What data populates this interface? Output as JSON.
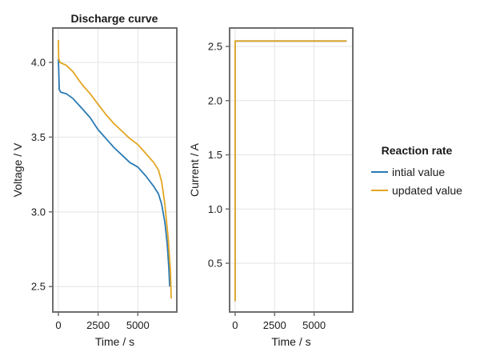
{
  "chart_data": [
    {
      "type": "line",
      "title": "Discharge curve",
      "xlabel": "Time / s",
      "ylabel": "Voltage / V",
      "xlim": [
        -350,
        7450
      ],
      "ylim": [
        2.33,
        4.23
      ],
      "xticks": [
        0,
        2500,
        5000
      ],
      "xtick_labels": [
        "0",
        "2500",
        "5000"
      ],
      "yticks": [
        2.5,
        3.0,
        3.5,
        4.0
      ],
      "ytick_labels": [
        "2.5",
        "3.0",
        "3.5",
        "4.0"
      ],
      "grid": true,
      "series": [
        {
          "name": "intial value",
          "color": "#2a7ab3",
          "x": [
            0,
            20,
            60,
            150,
            500,
            900,
            1500,
            2000,
            2500,
            3000,
            3500,
            4000,
            4500,
            5000,
            5500,
            6000,
            6300,
            6500,
            6700,
            6850,
            6950,
            7000
          ],
          "y": [
            4.02,
            3.95,
            3.82,
            3.8,
            3.79,
            3.76,
            3.69,
            3.63,
            3.55,
            3.49,
            3.43,
            3.38,
            3.33,
            3.3,
            3.24,
            3.17,
            3.12,
            3.05,
            2.93,
            2.78,
            2.62,
            2.5
          ]
        },
        {
          "name": "updated value",
          "color": "#e3a622",
          "x": [
            0,
            15,
            100,
            500,
            900,
            1500,
            2000,
            2500,
            3000,
            3500,
            4000,
            4500,
            5000,
            5500,
            6000,
            6300,
            6500,
            6700,
            6900,
            7050,
            7100
          ],
          "y": [
            4.15,
            4.03,
            4.0,
            3.98,
            3.94,
            3.85,
            3.79,
            3.72,
            3.65,
            3.59,
            3.54,
            3.49,
            3.45,
            3.39,
            3.33,
            3.28,
            3.2,
            3.05,
            2.83,
            2.6,
            2.42
          ]
        }
      ]
    },
    {
      "type": "line",
      "title": "",
      "xlabel": "Time / s",
      "ylabel": "Current / A",
      "xlim": [
        -350,
        7450
      ],
      "ylim": [
        0.05,
        2.67
      ],
      "xticks": [
        0,
        2500,
        5000
      ],
      "xtick_labels": [
        "0",
        "2500",
        "5000"
      ],
      "yticks": [
        0.5,
        1.0,
        1.5,
        2.0,
        2.5
      ],
      "ytick_labels": [
        "0.5",
        "1.0",
        "1.5",
        "2.0",
        "2.5"
      ],
      "grid": true,
      "series": [
        {
          "name": "intial value",
          "color": "#2a7ab3",
          "x": [
            0,
            0,
            7060
          ],
          "y": [
            0.15,
            2.55,
            2.55
          ]
        },
        {
          "name": "updated value",
          "color": "#e3a622",
          "x": [
            0,
            0,
            7060
          ],
          "y": [
            0.15,
            2.55,
            2.55
          ]
        }
      ]
    }
  ],
  "legend": {
    "title": "Reaction rate",
    "placement": "right",
    "entries": [
      {
        "label": "intial value",
        "color": "#2a7ab3"
      },
      {
        "label": "updated value",
        "color": "#e3a622"
      }
    ]
  }
}
